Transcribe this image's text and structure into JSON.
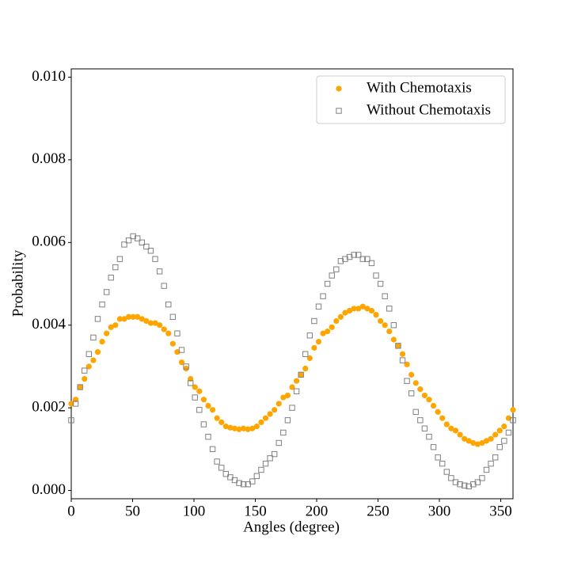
{
  "chart_data": {
    "type": "scatter",
    "xlabel": "Angles (degree)",
    "ylabel": "Probability",
    "x": [
      0,
      3.6,
      7.2,
      10.8,
      14.4,
      18,
      21.6,
      25.2,
      28.8,
      32.4,
      36,
      39.6,
      43.2,
      46.8,
      50.4,
      54,
      57.6,
      61.2,
      64.8,
      68.4,
      72,
      75.6,
      79.2,
      82.8,
      86.4,
      90,
      93.6,
      97.2,
      100.8,
      104.4,
      108,
      111.6,
      115.2,
      118.8,
      122.4,
      126,
      129.6,
      133.2,
      136.8,
      140.4,
      144,
      147.6,
      151.2,
      154.8,
      158.4,
      162,
      165.6,
      169.2,
      172.8,
      176.4,
      180,
      183.6,
      187.2,
      190.8,
      194.4,
      198,
      201.6,
      205.2,
      208.8,
      212.4,
      216,
      219.6,
      223.2,
      226.8,
      230.4,
      234,
      237.6,
      241.2,
      244.8,
      248.4,
      252,
      255.6,
      259.2,
      262.8,
      266.4,
      270,
      273.6,
      277.2,
      280.8,
      284.4,
      288,
      291.6,
      295.2,
      298.8,
      302.4,
      306,
      309.6,
      313.2,
      316.8,
      320.4,
      324,
      327.6,
      331.2,
      334.8,
      338.4,
      342,
      345.6,
      349.2,
      352.8,
      356.4,
      360
    ],
    "series": [
      {
        "name": "With Chemotaxis",
        "color": "#ffa500",
        "marker": "circle",
        "values": [
          0.0021,
          0.0022,
          0.0025,
          0.0027,
          0.003,
          0.00315,
          0.00335,
          0.0036,
          0.0038,
          0.00395,
          0.004,
          0.00415,
          0.00415,
          0.0042,
          0.0042,
          0.0042,
          0.00415,
          0.0041,
          0.00405,
          0.00405,
          0.004,
          0.0039,
          0.0038,
          0.00355,
          0.00335,
          0.0031,
          0.00295,
          0.0027,
          0.0025,
          0.0024,
          0.0022,
          0.00205,
          0.00195,
          0.00175,
          0.00165,
          0.00155,
          0.00152,
          0.0015,
          0.00148,
          0.0015,
          0.00148,
          0.0015,
          0.00155,
          0.00165,
          0.00175,
          0.00185,
          0.00195,
          0.0021,
          0.00225,
          0.0023,
          0.0025,
          0.00265,
          0.0028,
          0.00295,
          0.0032,
          0.00345,
          0.0036,
          0.0038,
          0.00385,
          0.00395,
          0.0041,
          0.0042,
          0.0043,
          0.00435,
          0.0044,
          0.0044,
          0.00445,
          0.0044,
          0.00435,
          0.00425,
          0.0041,
          0.004,
          0.00385,
          0.00365,
          0.0035,
          0.0033,
          0.00305,
          0.0028,
          0.0026,
          0.00245,
          0.0023,
          0.0022,
          0.00205,
          0.0019,
          0.00175,
          0.0016,
          0.0015,
          0.00145,
          0.00135,
          0.00125,
          0.0012,
          0.00115,
          0.00112,
          0.00115,
          0.0012,
          0.00125,
          0.00135,
          0.00145,
          0.00155,
          0.00175,
          0.00195
        ]
      },
      {
        "name": "Without Chemotaxis",
        "color": "#808080",
        "marker": "square",
        "values": [
          0.0017,
          0.0021,
          0.0025,
          0.0029,
          0.0033,
          0.0037,
          0.00415,
          0.0045,
          0.0048,
          0.00515,
          0.0054,
          0.0056,
          0.00595,
          0.00605,
          0.00615,
          0.0061,
          0.006,
          0.0059,
          0.0058,
          0.0056,
          0.0053,
          0.00495,
          0.0045,
          0.0042,
          0.0038,
          0.0034,
          0.003,
          0.0026,
          0.00225,
          0.00195,
          0.0016,
          0.0013,
          0.001,
          0.0007,
          0.00055,
          0.0004,
          0.00032,
          0.00025,
          0.00018,
          0.00015,
          0.00015,
          0.00022,
          0.00035,
          0.0005,
          0.00065,
          0.00078,
          0.00088,
          0.00115,
          0.0014,
          0.0017,
          0.002,
          0.0024,
          0.0028,
          0.0033,
          0.00375,
          0.0041,
          0.00445,
          0.0047,
          0.005,
          0.0052,
          0.00535,
          0.00555,
          0.0056,
          0.00565,
          0.0057,
          0.0057,
          0.0056,
          0.0056,
          0.0055,
          0.0052,
          0.005,
          0.0047,
          0.0044,
          0.004,
          0.0035,
          0.00315,
          0.00265,
          0.00235,
          0.0019,
          0.0017,
          0.0015,
          0.0013,
          0.00105,
          0.0008,
          0.00065,
          0.00045,
          0.0003,
          0.0002,
          0.00015,
          0.00012,
          0.0001,
          0.00015,
          0.0002,
          0.0003,
          0.0005,
          0.00065,
          0.0008,
          0.00105,
          0.0012,
          0.0014,
          0.0017
        ]
      }
    ],
    "xlim": [
      0,
      360
    ],
    "xticks": [
      0,
      50,
      100,
      150,
      200,
      250,
      300,
      350
    ],
    "ylim": [
      -0.0002,
      0.0102
    ],
    "yticks": [
      {
        "value": 0,
        "label": "0.000"
      },
      {
        "value": 0.002,
        "label": "0.002"
      },
      {
        "value": 0.004,
        "label": "0.004"
      },
      {
        "value": 0.006,
        "label": "0.006"
      },
      {
        "value": 0.008,
        "label": "0.008"
      },
      {
        "value": 0.01,
        "label": "0.010"
      }
    ],
    "legend": "upper right",
    "grid": false
  }
}
